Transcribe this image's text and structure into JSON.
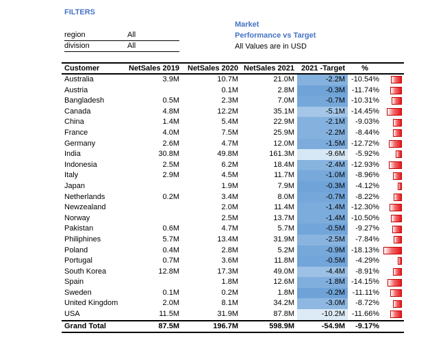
{
  "filters": {
    "title": "FILTERS",
    "items": [
      {
        "label": "region",
        "value": "All"
      },
      {
        "label": "division",
        "value": "All"
      }
    ]
  },
  "heading": {
    "line1": "Market",
    "line2": "Performance vs Target",
    "line3": "All Values are in USD"
  },
  "table": {
    "headers": [
      "Customer",
      "NetSales 2019",
      "NetSales 2020",
      "NetSales 2021",
      "2021 -Target",
      "%"
    ],
    "rows": [
      {
        "customer": "Australia",
        "ns2019": "3.9M",
        "ns2020": "10.7M",
        "ns2021": "21.0M",
        "target": "-2.2M",
        "pct": "-10.54%",
        "target_val": -2.2,
        "pct_val": -10.54
      },
      {
        "customer": "Austria",
        "ns2019": "",
        "ns2020": "0.1M",
        "ns2021": "2.8M",
        "target": "-0.3M",
        "pct": "-11.74%",
        "target_val": -0.3,
        "pct_val": -11.74
      },
      {
        "customer": "Bangladesh",
        "ns2019": "0.5M",
        "ns2020": "2.3M",
        "ns2021": "7.0M",
        "target": "-0.7M",
        "pct": "-10.31%",
        "target_val": -0.7,
        "pct_val": -10.31
      },
      {
        "customer": "Canada",
        "ns2019": "4.8M",
        "ns2020": "12.2M",
        "ns2021": "35.1M",
        "target": "-5.1M",
        "pct": "-14.45%",
        "target_val": -5.1,
        "pct_val": -14.45
      },
      {
        "customer": "China",
        "ns2019": "1.4M",
        "ns2020": "5.4M",
        "ns2021": "22.9M",
        "target": "-2.1M",
        "pct": "-9.03%",
        "target_val": -2.1,
        "pct_val": -9.03
      },
      {
        "customer": "France",
        "ns2019": "4.0M",
        "ns2020": "7.5M",
        "ns2021": "25.9M",
        "target": "-2.2M",
        "pct": "-8.44%",
        "target_val": -2.2,
        "pct_val": -8.44
      },
      {
        "customer": "Germany",
        "ns2019": "2.6M",
        "ns2020": "4.7M",
        "ns2021": "12.0M",
        "target": "-1.5M",
        "pct": "-12.72%",
        "target_val": -1.5,
        "pct_val": -12.72
      },
      {
        "customer": "India",
        "ns2019": "30.8M",
        "ns2020": "49.8M",
        "ns2021": "161.3M",
        "target": "-9.6M",
        "pct": "-5.92%",
        "target_val": -9.6,
        "pct_val": -5.92
      },
      {
        "customer": "Indonesia",
        "ns2019": "2.5M",
        "ns2020": "6.2M",
        "ns2021": "18.4M",
        "target": "-2.4M",
        "pct": "-12.93%",
        "target_val": -2.4,
        "pct_val": -12.93
      },
      {
        "customer": "Italy",
        "ns2019": "2.9M",
        "ns2020": "4.5M",
        "ns2021": "11.7M",
        "target": "-1.0M",
        "pct": "-8.96%",
        "target_val": -1.0,
        "pct_val": -8.96
      },
      {
        "customer": "Japan",
        "ns2019": "",
        "ns2020": "1.9M",
        "ns2021": "7.9M",
        "target": "-0.3M",
        "pct": "-4.12%",
        "target_val": -0.3,
        "pct_val": -4.12
      },
      {
        "customer": "Netherlands",
        "ns2019": "0.2M",
        "ns2020": "3.4M",
        "ns2021": "8.0M",
        "target": "-0.7M",
        "pct": "-8.22%",
        "target_val": -0.7,
        "pct_val": -8.22
      },
      {
        "customer": "Newzealand",
        "ns2019": "",
        "ns2020": "2.0M",
        "ns2021": "11.4M",
        "target": "-1.4M",
        "pct": "-12.30%",
        "target_val": -1.4,
        "pct_val": -12.3
      },
      {
        "customer": "Norway",
        "ns2019": "",
        "ns2020": "2.5M",
        "ns2021": "13.7M",
        "target": "-1.4M",
        "pct": "-10.50%",
        "target_val": -1.4,
        "pct_val": -10.5
      },
      {
        "customer": "Pakistan",
        "ns2019": "0.6M",
        "ns2020": "4.7M",
        "ns2021": "5.7M",
        "target": "-0.5M",
        "pct": "-9.27%",
        "target_val": -0.5,
        "pct_val": -9.27
      },
      {
        "customer": "Philiphines",
        "ns2019": "5.7M",
        "ns2020": "13.4M",
        "ns2021": "31.9M",
        "target": "-2.5M",
        "pct": "-7.84%",
        "target_val": -2.5,
        "pct_val": -7.84
      },
      {
        "customer": "Poland",
        "ns2019": "0.4M",
        "ns2020": "2.8M",
        "ns2021": "5.2M",
        "target": "-0.9M",
        "pct": "-18.13%",
        "target_val": -0.9,
        "pct_val": -18.13
      },
      {
        "customer": "Portugal",
        "ns2019": "0.7M",
        "ns2020": "3.6M",
        "ns2021": "11.8M",
        "target": "-0.5M",
        "pct": "-4.29%",
        "target_val": -0.5,
        "pct_val": -4.29
      },
      {
        "customer": "South Korea",
        "ns2019": "12.8M",
        "ns2020": "17.3M",
        "ns2021": "49.0M",
        "target": "-4.4M",
        "pct": "-8.91%",
        "target_val": -4.4,
        "pct_val": -8.91
      },
      {
        "customer": "Spain",
        "ns2019": "",
        "ns2020": "1.8M",
        "ns2021": "12.6M",
        "target": "-1.8M",
        "pct": "-14.15%",
        "target_val": -1.8,
        "pct_val": -14.15
      },
      {
        "customer": "Sweden",
        "ns2019": "0.1M",
        "ns2020": "0.2M",
        "ns2021": "1.8M",
        "target": "-0.2M",
        "pct": "-11.11%",
        "target_val": -0.2,
        "pct_val": -11.11
      },
      {
        "customer": "United Kingdom",
        "ns2019": "2.0M",
        "ns2020": "8.1M",
        "ns2021": "34.2M",
        "target": "-3.0M",
        "pct": "-8.72%",
        "target_val": -3.0,
        "pct_val": -8.72
      },
      {
        "customer": "USA",
        "ns2019": "11.5M",
        "ns2020": "31.9M",
        "ns2021": "87.8M",
        "target": "-10.2M",
        "pct": "-11.66%",
        "target_val": -10.2,
        "pct_val": -11.66
      }
    ],
    "total": {
      "customer": "Grand Total",
      "ns2019": "87.5M",
      "ns2020": "196.7M",
      "ns2021": "598.9M",
      "target": "-54.9M",
      "pct": "-9.17%"
    }
  },
  "colors": {
    "accent_text": "#4472c4",
    "bar_red": "#e8171c",
    "heat_light": "#ddebf7",
    "heat_dark": "#6fa3d8"
  }
}
